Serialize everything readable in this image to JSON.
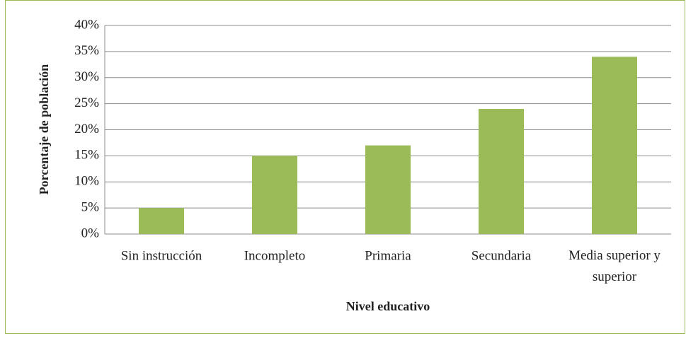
{
  "chart_data": {
    "type": "bar",
    "x_label": "Nivel educativo",
    "y_label": "Porcentaje de población",
    "categories": [
      "Sin instrucción",
      "Incompleto",
      "Primaria",
      "Secundaria",
      "Media superior y superior"
    ],
    "values": [
      5,
      15,
      17,
      24,
      34
    ],
    "color": "#9bbb59",
    "ylim": [
      0,
      40
    ],
    "yticks": [
      {
        "value": 0,
        "label": "0%"
      },
      {
        "value": 5,
        "label": "5%"
      },
      {
        "value": 10,
        "label": "10%"
      },
      {
        "value": 15,
        "label": "15%"
      },
      {
        "value": 20,
        "label": "20%"
      },
      {
        "value": 25,
        "label": "25%"
      },
      {
        "value": 30,
        "label": "30%"
      },
      {
        "value": 35,
        "label": "35%"
      },
      {
        "value": 40,
        "label": "40%"
      }
    ],
    "grid": true
  }
}
